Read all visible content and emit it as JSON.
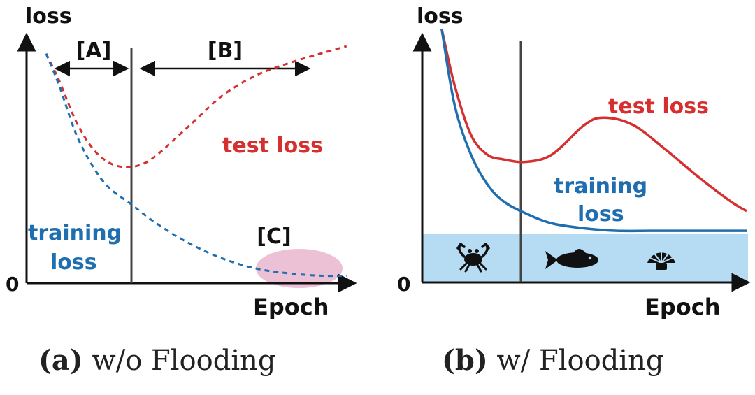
{
  "panels": [
    {
      "id": "a",
      "caption_label": "(a)",
      "caption_text": "w/o Flooding",
      "ylabel": "loss",
      "xlabel": "Epoch",
      "origin_label": "0",
      "region_labels": {
        "A": "[A]",
        "B": "[B]",
        "C": "[C]"
      },
      "series_labels": {
        "test": "test loss",
        "training_line1": "training",
        "training_line2": "loss"
      }
    },
    {
      "id": "b",
      "caption_label": "(b)",
      "caption_text": "w/ Flooding",
      "ylabel": "loss",
      "xlabel": "Epoch",
      "origin_label": "0",
      "series_labels": {
        "test": "test loss",
        "training_line1": "training",
        "training_line2": "loss"
      },
      "flood_icons": [
        "crab-icon",
        "fish-icon",
        "shell-icon"
      ]
    }
  ],
  "colors": {
    "test": "#d62f2f",
    "training": "#1f6fb0",
    "flood": "#b6dcf4",
    "highlight": "#e9b6cf",
    "axis": "#111111"
  },
  "chart_data": [
    {
      "type": "line",
      "title": "(a) w/o Flooding",
      "xlabel": "Epoch",
      "ylabel": "loss",
      "xlim": [
        0,
        10
      ],
      "ylim": [
        0,
        10
      ],
      "dashed": true,
      "vline_x": 3.2,
      "series": [
        {
          "name": "test loss",
          "x": [
            0.6,
            1.0,
            1.5,
            2.0,
            2.5,
            3.0,
            3.5,
            4.0,
            5.0,
            6.0,
            7.0,
            8.0,
            9.0,
            9.8
          ],
          "y": [
            9.3,
            8.2,
            6.6,
            5.5,
            4.9,
            4.7,
            4.8,
            5.2,
            6.4,
            7.6,
            8.4,
            8.9,
            9.3,
            9.6
          ]
        },
        {
          "name": "training loss",
          "x": [
            0.6,
            1.0,
            1.5,
            2.0,
            2.5,
            3.2,
            4.0,
            5.0,
            6.0,
            7.0,
            8.0,
            9.0,
            9.8
          ],
          "y": [
            9.3,
            8.0,
            6.1,
            4.8,
            3.9,
            3.2,
            2.4,
            1.6,
            1.0,
            0.6,
            0.4,
            0.3,
            0.3
          ]
        }
      ]
    },
    {
      "type": "line",
      "title": "(b) w/ Flooding",
      "xlabel": "Epoch",
      "ylabel": "loss",
      "xlim": [
        0,
        10
      ],
      "ylim": [
        0,
        10
      ],
      "dashed": false,
      "vline_x": 3.2,
      "flood_level": 2.1,
      "series": [
        {
          "name": "test loss",
          "x": [
            0.6,
            1.0,
            1.5,
            2.0,
            2.5,
            3.2,
            4.0,
            5.0,
            5.6,
            6.5,
            7.5,
            8.5,
            9.5,
            10.0
          ],
          "y": [
            10.3,
            8.0,
            6.0,
            5.2,
            5.0,
            4.9,
            5.2,
            6.4,
            6.7,
            6.4,
            5.4,
            4.3,
            3.3,
            2.9
          ]
        },
        {
          "name": "training loss",
          "x": [
            0.6,
            1.0,
            1.5,
            2.0,
            2.5,
            3.2,
            4.0,
            5.0,
            6.0,
            7.0,
            8.0,
            10.0
          ],
          "y": [
            10.3,
            7.2,
            5.2,
            4.0,
            3.3,
            2.8,
            2.4,
            2.2,
            2.1,
            2.1,
            2.1,
            2.1
          ]
        }
      ]
    }
  ]
}
